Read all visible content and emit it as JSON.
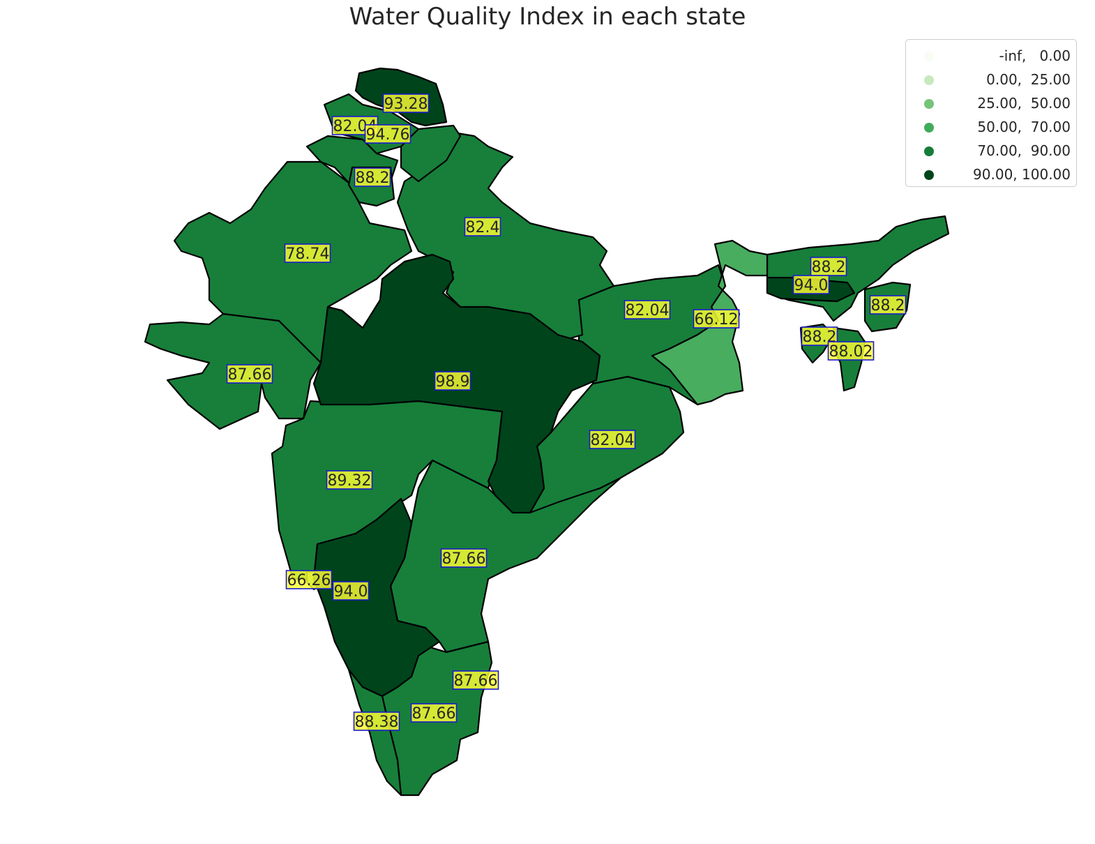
{
  "title": "Water Quality Index in each state",
  "legend": {
    "items": [
      {
        "label": " -inf,   0.00",
        "color": "#f7fcf5"
      },
      {
        "label": "  0.00,  25.00",
        "color": "#c7e9c0"
      },
      {
        "label": "25.00,  50.00",
        "color": "#74c476"
      },
      {
        "label": "50.00,  70.00",
        "color": "#41ab5d"
      },
      {
        "label": "70.00,  90.00",
        "color": "#167d3a"
      },
      {
        "label": "90.00, 100.00",
        "color": "#00441b"
      }
    ]
  },
  "colors": {
    "c50_70": "#48ad5f",
    "c70_90": "#177f3a",
    "c90_100": "#00441b",
    "label_box": "#ffff33",
    "label_border": "#1a1acc"
  },
  "chart_data": {
    "type": "choropleth",
    "title": "Water Quality Index in each state",
    "bins": [
      [
        null,
        0.0
      ],
      [
        0.0,
        25.0
      ],
      [
        25.0,
        50.0
      ],
      [
        50.0,
        70.0
      ],
      [
        70.0,
        90.0
      ],
      [
        90.0,
        100.0
      ]
    ],
    "labels": [
      "93.28",
      "82.04",
      "94.76",
      "88.2",
      "82.4",
      "78.74",
      "98.9",
      "87.66",
      "82.04",
      "66.12",
      "82.04",
      "89.32",
      "87.66",
      "66.26",
      "94.0",
      "87.66",
      "87.66",
      "88.38",
      "88.2",
      "94.0",
      "88.2",
      "88.2",
      "88.02"
    ]
  }
}
